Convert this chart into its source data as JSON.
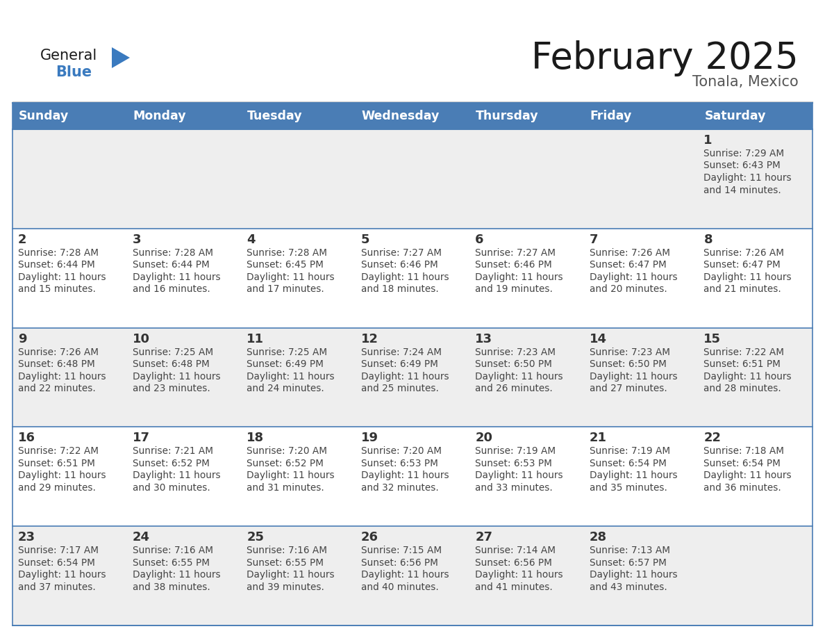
{
  "title": "February 2025",
  "subtitle": "Tonala, Mexico",
  "days_of_week": [
    "Sunday",
    "Monday",
    "Tuesday",
    "Wednesday",
    "Thursday",
    "Friday",
    "Saturday"
  ],
  "header_bg": "#4a7db5",
  "header_text": "#FFFFFF",
  "cell_bg_odd": "#EEEEEE",
  "cell_bg_even": "#FFFFFF",
  "border_color": "#4a7db5",
  "day_number_color": "#333333",
  "text_color": "#444444",
  "title_color": "#1a1a1a",
  "subtitle_color": "#555555",
  "logo_general_color": "#1a1a1a",
  "logo_blue_color": "#3a7abf",
  "figsize": [
    11.88,
    9.18
  ],
  "dpi": 100,
  "calendar_data": [
    [
      null,
      null,
      null,
      null,
      null,
      null,
      {
        "day": 1,
        "sunrise": "7:29 AM",
        "sunset": "6:43 PM",
        "daylight_h": "11 hours",
        "daylight_m": "14 minutes."
      }
    ],
    [
      {
        "day": 2,
        "sunrise": "7:28 AM",
        "sunset": "6:44 PM",
        "daylight_h": "11 hours",
        "daylight_m": "15 minutes."
      },
      {
        "day": 3,
        "sunrise": "7:28 AM",
        "sunset": "6:44 PM",
        "daylight_h": "11 hours",
        "daylight_m": "16 minutes."
      },
      {
        "day": 4,
        "sunrise": "7:28 AM",
        "sunset": "6:45 PM",
        "daylight_h": "11 hours",
        "daylight_m": "17 minutes."
      },
      {
        "day": 5,
        "sunrise": "7:27 AM",
        "sunset": "6:46 PM",
        "daylight_h": "11 hours",
        "daylight_m": "18 minutes."
      },
      {
        "day": 6,
        "sunrise": "7:27 AM",
        "sunset": "6:46 PM",
        "daylight_h": "11 hours",
        "daylight_m": "19 minutes."
      },
      {
        "day": 7,
        "sunrise": "7:26 AM",
        "sunset": "6:47 PM",
        "daylight_h": "11 hours",
        "daylight_m": "20 minutes."
      },
      {
        "day": 8,
        "sunrise": "7:26 AM",
        "sunset": "6:47 PM",
        "daylight_h": "11 hours",
        "daylight_m": "21 minutes."
      }
    ],
    [
      {
        "day": 9,
        "sunrise": "7:26 AM",
        "sunset": "6:48 PM",
        "daylight_h": "11 hours",
        "daylight_m": "22 minutes."
      },
      {
        "day": 10,
        "sunrise": "7:25 AM",
        "sunset": "6:48 PM",
        "daylight_h": "11 hours",
        "daylight_m": "23 minutes."
      },
      {
        "day": 11,
        "sunrise": "7:25 AM",
        "sunset": "6:49 PM",
        "daylight_h": "11 hours",
        "daylight_m": "24 minutes."
      },
      {
        "day": 12,
        "sunrise": "7:24 AM",
        "sunset": "6:49 PM",
        "daylight_h": "11 hours",
        "daylight_m": "25 minutes."
      },
      {
        "day": 13,
        "sunrise": "7:23 AM",
        "sunset": "6:50 PM",
        "daylight_h": "11 hours",
        "daylight_m": "26 minutes."
      },
      {
        "day": 14,
        "sunrise": "7:23 AM",
        "sunset": "6:50 PM",
        "daylight_h": "11 hours",
        "daylight_m": "27 minutes."
      },
      {
        "day": 15,
        "sunrise": "7:22 AM",
        "sunset": "6:51 PM",
        "daylight_h": "11 hours",
        "daylight_m": "28 minutes."
      }
    ],
    [
      {
        "day": 16,
        "sunrise": "7:22 AM",
        "sunset": "6:51 PM",
        "daylight_h": "11 hours",
        "daylight_m": "29 minutes."
      },
      {
        "day": 17,
        "sunrise": "7:21 AM",
        "sunset": "6:52 PM",
        "daylight_h": "11 hours",
        "daylight_m": "30 minutes."
      },
      {
        "day": 18,
        "sunrise": "7:20 AM",
        "sunset": "6:52 PM",
        "daylight_h": "11 hours",
        "daylight_m": "31 minutes."
      },
      {
        "day": 19,
        "sunrise": "7:20 AM",
        "sunset": "6:53 PM",
        "daylight_h": "11 hours",
        "daylight_m": "32 minutes."
      },
      {
        "day": 20,
        "sunrise": "7:19 AM",
        "sunset": "6:53 PM",
        "daylight_h": "11 hours",
        "daylight_m": "33 minutes."
      },
      {
        "day": 21,
        "sunrise": "7:19 AM",
        "sunset": "6:54 PM",
        "daylight_h": "11 hours",
        "daylight_m": "35 minutes."
      },
      {
        "day": 22,
        "sunrise": "7:18 AM",
        "sunset": "6:54 PM",
        "daylight_h": "11 hours",
        "daylight_m": "36 minutes."
      }
    ],
    [
      {
        "day": 23,
        "sunrise": "7:17 AM",
        "sunset": "6:54 PM",
        "daylight_h": "11 hours",
        "daylight_m": "37 minutes."
      },
      {
        "day": 24,
        "sunrise": "7:16 AM",
        "sunset": "6:55 PM",
        "daylight_h": "11 hours",
        "daylight_m": "38 minutes."
      },
      {
        "day": 25,
        "sunrise": "7:16 AM",
        "sunset": "6:55 PM",
        "daylight_h": "11 hours",
        "daylight_m": "39 minutes."
      },
      {
        "day": 26,
        "sunrise": "7:15 AM",
        "sunset": "6:56 PM",
        "daylight_h": "11 hours",
        "daylight_m": "40 minutes."
      },
      {
        "day": 27,
        "sunrise": "7:14 AM",
        "sunset": "6:56 PM",
        "daylight_h": "11 hours",
        "daylight_m": "41 minutes."
      },
      {
        "day": 28,
        "sunrise": "7:13 AM",
        "sunset": "6:57 PM",
        "daylight_h": "11 hours",
        "daylight_m": "43 minutes."
      },
      null
    ]
  ]
}
